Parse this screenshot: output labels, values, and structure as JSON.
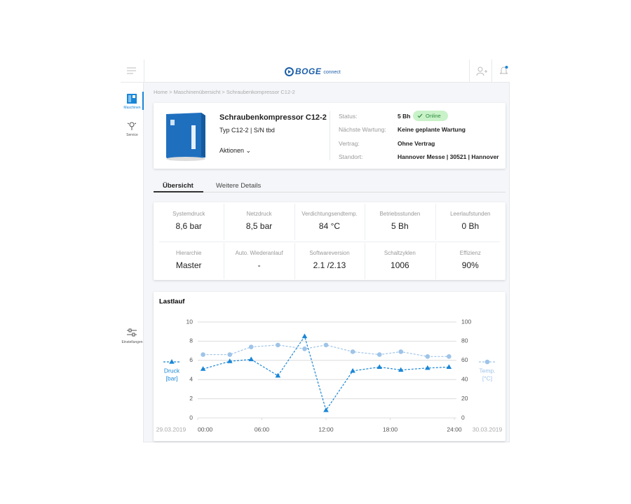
{
  "header": {
    "logo": "BOGE",
    "logo_sub": "connect"
  },
  "sidebar": [
    {
      "label": "Maschinen"
    },
    {
      "label": "Service"
    },
    {
      "label": "Einstellungen"
    }
  ],
  "breadcrumb": [
    "Home",
    "Maschinenübersicht",
    "Schraubenkompressor C12-2"
  ],
  "machine": {
    "name": "Schraubenkompressor C12-2",
    "type": "Typ C12-2 | S/N tbd",
    "actions": "Aktionen",
    "status_badge": "Online",
    "details": [
      {
        "label": "Status:",
        "value": "5 Bh"
      },
      {
        "label": "Nächste Wartung:",
        "value": "Keine geplante Wartung"
      },
      {
        "label": "Vertrag:",
        "value": "Ohne Vertrag"
      },
      {
        "label": "Standort:",
        "value": "Hannover Messe | 30521 | Hannover"
      }
    ]
  },
  "tabs": [
    "Übersicht",
    "Weitere Details"
  ],
  "stats": [
    {
      "label": "Systemdruck",
      "value": "8,6 bar"
    },
    {
      "label": "Netzdruck",
      "value": "8,5 bar"
    },
    {
      "label": "Verdichtungsendtemp.",
      "value": "84 °C"
    },
    {
      "label": "Betriebsstunden",
      "value": "5 Bh"
    },
    {
      "label": "Leerlaufstunden",
      "value": "0 Bh"
    },
    {
      "label": "Hierarchie",
      "value": "Master"
    },
    {
      "label": "Auto. Wiederanlauf",
      "value": "-"
    },
    {
      "label": "Softwareversion",
      "value": "2.1 /2.13"
    },
    {
      "label": "Schaltzyklen",
      "value": "1006"
    },
    {
      "label": "Effizienz",
      "value": "90%"
    }
  ],
  "chart_data": {
    "type": "line",
    "title": "Lastlauf",
    "x_start_label": "29.03.2019",
    "x_end_label": "30.03.2019",
    "x": [
      0.5,
      3,
      5,
      7.5,
      10,
      12,
      14.5,
      17,
      19,
      21.5,
      23.5
    ],
    "xlim": [
      0,
      24
    ],
    "xticks": [
      {
        "value": 0,
        "label": "00:00"
      },
      {
        "value": 6,
        "label": "06:00"
      },
      {
        "value": 12,
        "label": "12:00"
      },
      {
        "value": 18,
        "label": "18:00"
      },
      {
        "value": 24,
        "label": "24:00"
      }
    ],
    "ylim": [
      0,
      10
    ],
    "yticks": [
      0,
      2,
      4,
      6,
      8,
      10
    ],
    "y2lim": [
      0,
      100
    ],
    "y2ticks": [
      0,
      20,
      40,
      60,
      80,
      100
    ],
    "grid": true,
    "series": [
      {
        "name": "Druck",
        "unit": "[bar]",
        "color": "#1a86d6",
        "marker": "triangle",
        "values": [
          5.1,
          5.9,
          6.1,
          4.4,
          8.5,
          0.8,
          4.9,
          5.3,
          5.0,
          5.2,
          5.3
        ]
      },
      {
        "name": "Temp.",
        "unit": "[°C]",
        "color": "#9ec4e8",
        "marker": "circle",
        "axis": "y2",
        "values": [
          66,
          66,
          74,
          76,
          72,
          76,
          69,
          66,
          69,
          64,
          64
        ]
      }
    ]
  }
}
